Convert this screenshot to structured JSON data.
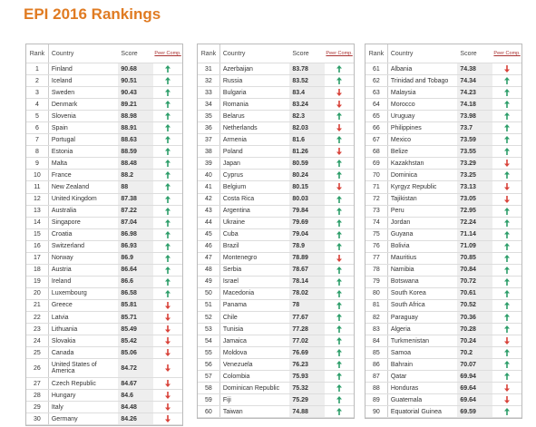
{
  "title": "EPI 2016 Rankings",
  "columns": [
    "Rank",
    "Country",
    "Score",
    "Peer Comp."
  ],
  "tables": [
    {
      "rows": [
        [
          1,
          "Finland",
          90.68,
          "up"
        ],
        [
          2,
          "Iceland",
          90.51,
          "up"
        ],
        [
          3,
          "Sweden",
          90.43,
          "up"
        ],
        [
          4,
          "Denmark",
          89.21,
          "up"
        ],
        [
          5,
          "Slovenia",
          88.98,
          "up"
        ],
        [
          6,
          "Spain",
          88.91,
          "up"
        ],
        [
          7,
          "Portugal",
          88.63,
          "up"
        ],
        [
          8,
          "Estonia",
          88.59,
          "up"
        ],
        [
          9,
          "Malta",
          88.48,
          "up"
        ],
        [
          10,
          "France",
          88.2,
          "up"
        ],
        [
          11,
          "New Zealand",
          88,
          "up"
        ],
        [
          12,
          "United Kingdom",
          87.38,
          "up"
        ],
        [
          13,
          "Australia",
          87.22,
          "up"
        ],
        [
          14,
          "Singapore",
          87.04,
          "up"
        ],
        [
          15,
          "Croatia",
          86.98,
          "up"
        ],
        [
          16,
          "Switzerland",
          86.93,
          "up"
        ],
        [
          17,
          "Norway",
          86.9,
          "up"
        ],
        [
          18,
          "Austria",
          86.64,
          "up"
        ],
        [
          19,
          "Ireland",
          86.6,
          "up"
        ],
        [
          20,
          "Luxembourg",
          86.58,
          "up"
        ],
        [
          21,
          "Greece",
          85.81,
          "down"
        ],
        [
          22,
          "Latvia",
          85.71,
          "down"
        ],
        [
          23,
          "Lithuania",
          85.49,
          "down"
        ],
        [
          24,
          "Slovakia",
          85.42,
          "down"
        ],
        [
          25,
          "Canada",
          85.06,
          "down"
        ],
        [
          26,
          "United States of America",
          84.72,
          "down"
        ],
        [
          27,
          "Czech Republic",
          84.67,
          "down"
        ],
        [
          28,
          "Hungary",
          84.6,
          "down"
        ],
        [
          29,
          "Italy",
          84.48,
          "down"
        ],
        [
          30,
          "Germany",
          84.26,
          "down"
        ]
      ]
    },
    {
      "rows": [
        [
          31,
          "Azerbaijan",
          83.78,
          "up"
        ],
        [
          32,
          "Russia",
          83.52,
          "up"
        ],
        [
          33,
          "Bulgaria",
          83.4,
          "down"
        ],
        [
          34,
          "Romania",
          83.24,
          "down"
        ],
        [
          35,
          "Belarus",
          82.3,
          "up"
        ],
        [
          36,
          "Netherlands",
          82.03,
          "down"
        ],
        [
          37,
          "Armenia",
          81.6,
          "up"
        ],
        [
          38,
          "Poland",
          81.26,
          "down"
        ],
        [
          39,
          "Japan",
          80.59,
          "up"
        ],
        [
          40,
          "Cyprus",
          80.24,
          "up"
        ],
        [
          41,
          "Belgium",
          80.15,
          "down"
        ],
        [
          42,
          "Costa Rica",
          80.03,
          "up"
        ],
        [
          43,
          "Argentina",
          79.84,
          "up"
        ],
        [
          44,
          "Ukraine",
          79.69,
          "up"
        ],
        [
          45,
          "Cuba",
          79.04,
          "up"
        ],
        [
          46,
          "Brazil",
          78.9,
          "up"
        ],
        [
          47,
          "Montenegro",
          78.89,
          "down"
        ],
        [
          48,
          "Serbia",
          78.67,
          "up"
        ],
        [
          49,
          "Israel",
          78.14,
          "up"
        ],
        [
          50,
          "Macedonia",
          78.02,
          "up"
        ],
        [
          51,
          "Panama",
          78,
          "up"
        ],
        [
          52,
          "Chile",
          77.67,
          "up"
        ],
        [
          53,
          "Tunisia",
          77.28,
          "up"
        ],
        [
          54,
          "Jamaica",
          77.02,
          "up"
        ],
        [
          55,
          "Moldova",
          76.69,
          "up"
        ],
        [
          56,
          "Venezuela",
          76.23,
          "up"
        ],
        [
          57,
          "Colombia",
          75.93,
          "up"
        ],
        [
          58,
          "Dominican Republic",
          75.32,
          "up"
        ],
        [
          59,
          "Fiji",
          75.29,
          "up"
        ],
        [
          60,
          "Taiwan",
          74.88,
          "up"
        ]
      ]
    },
    {
      "rows": [
        [
          61,
          "Albania",
          74.38,
          "down"
        ],
        [
          62,
          "Trinidad and Tobago",
          74.34,
          "up"
        ],
        [
          63,
          "Malaysia",
          74.23,
          "up"
        ],
        [
          64,
          "Morocco",
          74.18,
          "up"
        ],
        [
          65,
          "Uruguay",
          73.98,
          "up"
        ],
        [
          66,
          "Philippines",
          73.7,
          "up"
        ],
        [
          67,
          "Mexico",
          73.59,
          "up"
        ],
        [
          68,
          "Belize",
          73.55,
          "up"
        ],
        [
          69,
          "Kazakhstan",
          73.29,
          "down"
        ],
        [
          70,
          "Dominica",
          73.25,
          "up"
        ],
        [
          71,
          "Kyrgyz Republic",
          73.13,
          "down"
        ],
        [
          72,
          "Tajikistan",
          73.05,
          "down"
        ],
        [
          73,
          "Peru",
          72.95,
          "up"
        ],
        [
          74,
          "Jordan",
          72.24,
          "up"
        ],
        [
          75,
          "Guyana",
          71.14,
          "up"
        ],
        [
          76,
          "Bolivia",
          71.09,
          "up"
        ],
        [
          77,
          "Mauritius",
          70.85,
          "up"
        ],
        [
          78,
          "Namibia",
          70.84,
          "up"
        ],
        [
          79,
          "Botswana",
          70.72,
          "up"
        ],
        [
          80,
          "South Korea",
          70.61,
          "up"
        ],
        [
          81,
          "South Africa",
          70.52,
          "up"
        ],
        [
          82,
          "Paraguay",
          70.36,
          "up"
        ],
        [
          83,
          "Algeria",
          70.28,
          "up"
        ],
        [
          84,
          "Turkmenistan",
          70.24,
          "down"
        ],
        [
          85,
          "Samoa",
          70.2,
          "up"
        ],
        [
          86,
          "Bahrain",
          70.07,
          "up"
        ],
        [
          87,
          "Qatar",
          69.94,
          "up"
        ],
        [
          88,
          "Honduras",
          69.64,
          "down"
        ],
        [
          89,
          "Guatemala",
          69.64,
          "down"
        ],
        [
          90,
          "Equatorial Guinea",
          69.59,
          "up"
        ]
      ]
    }
  ]
}
